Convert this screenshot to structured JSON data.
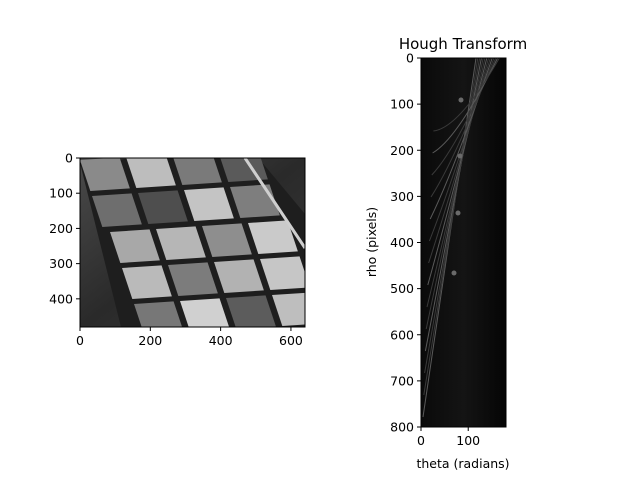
{
  "chart_data": [
    {
      "type": "image",
      "title": "",
      "xlabel": "",
      "ylabel": "",
      "xlim": [
        0,
        640
      ],
      "ylim": [
        480,
        0
      ],
      "xticks": [
        0,
        200,
        400,
        600
      ],
      "yticks": [
        0,
        100,
        200,
        300,
        400
      ],
      "colormap": "gray",
      "content": "grayscale photograph"
    },
    {
      "type": "heatmap",
      "title": "Hough Transform",
      "xlabel": "theta (radians)",
      "ylabel": "rho (pixels)",
      "xlim": [
        0,
        180
      ],
      "ylim": [
        800,
        0
      ],
      "xticks": [
        0,
        100
      ],
      "yticks": [
        0,
        100,
        200,
        300,
        400,
        500,
        600,
        700,
        800
      ],
      "colormap": "gray"
    }
  ]
}
